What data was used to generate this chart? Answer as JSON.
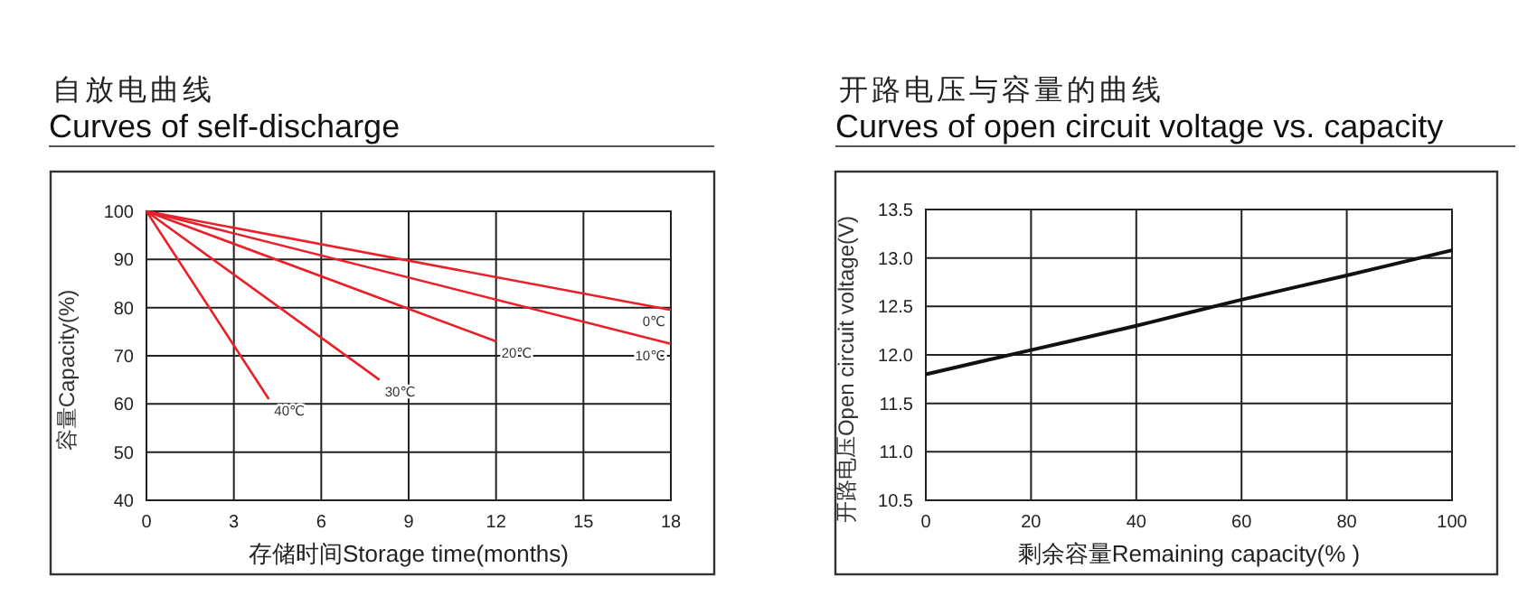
{
  "chart_data": [
    {
      "type": "line",
      "title": "自放电曲线",
      "subtitle": "Curves of self-discharge",
      "xlabel": "存储时间Storage time(months)",
      "ylabel": "容量Capacity(%)",
      "xlim": [
        0,
        18
      ],
      "xticks": [
        0,
        3,
        6,
        9,
        12,
        15,
        18
      ],
      "ylim": [
        40,
        100
      ],
      "yticks": [
        40,
        50,
        60,
        70,
        80,
        90,
        100
      ],
      "grid": true,
      "series": [
        {
          "name": "40℃",
          "color": "#e8202a",
          "x": [
            0,
            4.2
          ],
          "values": [
            100,
            61
          ]
        },
        {
          "name": "30℃",
          "color": "#e8202a",
          "x": [
            0,
            8
          ],
          "values": [
            100,
            65
          ]
        },
        {
          "name": "20℃",
          "color": "#e8202a",
          "x": [
            0,
            12
          ],
          "values": [
            100,
            73
          ]
        },
        {
          "name": "10℃",
          "color": "#e8202a",
          "x": [
            0,
            18
          ],
          "values": [
            100,
            72.5
          ]
        },
        {
          "name": "0℃",
          "color": "#e8202a",
          "x": [
            0,
            18
          ],
          "values": [
            100,
            79.5
          ]
        }
      ]
    },
    {
      "type": "line",
      "title": "开路电压与容量的曲线",
      "subtitle": "Curves of open circuit voltage vs. capacity",
      "xlabel": "剩余容量Remaining capacity(% )",
      "ylabel": "开路电压Open circuit voltage(V)",
      "xlim": [
        0,
        100
      ],
      "xticks": [
        0,
        20,
        40,
        60,
        80,
        100
      ],
      "ylim": [
        10.5,
        13.5
      ],
      "yticks": [
        10.5,
        {
          "value": 11,
          "label": "11.0"
        },
        11.5,
        {
          "value": 12,
          "label": "12.0"
        },
        12.5,
        {
          "value": 13,
          "label": "13.0"
        },
        13.5
      ],
      "grid": true,
      "series": [
        {
          "color": "#111111",
          "x": [
            0,
            20,
            40,
            60,
            80,
            100
          ],
          "values": [
            11.8,
            12.05,
            12.3,
            12.57,
            12.82,
            13.08
          ]
        }
      ]
    }
  ]
}
